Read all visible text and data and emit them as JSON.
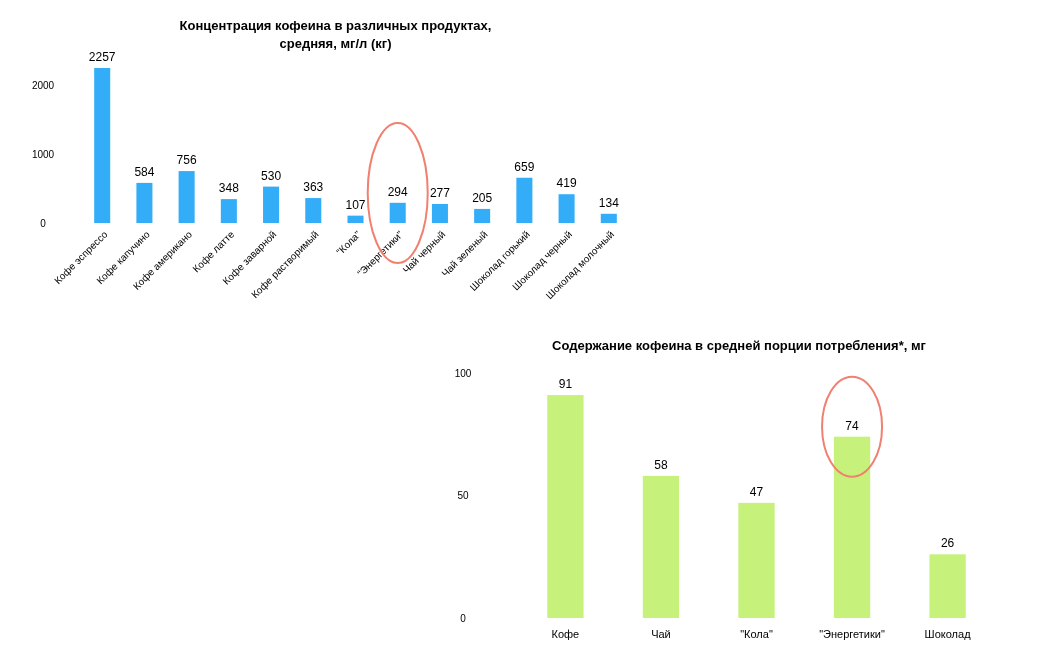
{
  "chart_data": [
    {
      "type": "bar",
      "title": "Концентрация кофеина в различных продуктах,\nсредняя, мг/л (кг)",
      "categories": [
        "Кофе эспрессо",
        "Кофе капучино",
        "Кофе американо",
        "Кофе латте",
        "Кофе заварной",
        "Кофе растворимый",
        "\"Кола\"",
        "\"Энергетики\"",
        "Чай черный",
        "Чай зеленый",
        "Шоколад горький",
        "Шоколад черный",
        "Шоколад молочный"
      ],
      "values": [
        2257,
        584,
        756,
        348,
        530,
        363,
        107,
        294,
        277,
        205,
        659,
        419,
        134
      ],
      "color": "#33adf8",
      "ylim": [
        0,
        2257
      ],
      "yticks": [
        0,
        1000,
        2000
      ],
      "data_labels": true
    },
    {
      "type": "bar",
      "title": "Содержание кофеина  в средней порции потребления*,  мг",
      "categories": [
        "Кофе",
        "Чай",
        "\"Кола\"",
        "\"Энергетики\"",
        "Шоколад"
      ],
      "values": [
        91,
        58,
        47,
        74,
        26
      ],
      "color": "#c6f27c",
      "ylim": [
        0,
        100
      ],
      "yticks": [
        0,
        50,
        100
      ],
      "data_labels": true
    }
  ]
}
